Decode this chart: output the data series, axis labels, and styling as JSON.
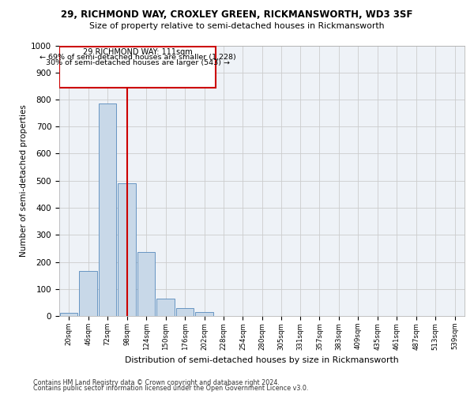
{
  "title1": "29, RICHMOND WAY, CROXLEY GREEN, RICKMANSWORTH, WD3 3SF",
  "title2": "Size of property relative to semi-detached houses in Rickmansworth",
  "xlabel": "Distribution of semi-detached houses by size in Rickmansworth",
  "ylabel": "Number of semi-detached properties",
  "bin_labels": [
    "20sqm",
    "46sqm",
    "72sqm",
    "98sqm",
    "124sqm",
    "150sqm",
    "176sqm",
    "202sqm",
    "228sqm",
    "254sqm",
    "280sqm",
    "305sqm",
    "331sqm",
    "357sqm",
    "383sqm",
    "409sqm",
    "435sqm",
    "461sqm",
    "487sqm",
    "513sqm",
    "539sqm"
  ],
  "bin_edges": [
    20,
    46,
    72,
    98,
    124,
    150,
    176,
    202,
    228,
    254,
    280,
    305,
    331,
    357,
    383,
    409,
    435,
    461,
    487,
    513,
    539
  ],
  "bar_heights": [
    12,
    165,
    785,
    490,
    237,
    65,
    30,
    15,
    0,
    0,
    0,
    0,
    0,
    0,
    0,
    0,
    0,
    0,
    0,
    0
  ],
  "bar_color": "#c8d8e8",
  "bar_edge_color": "#5588bb",
  "property_size": 111,
  "annotation_text1": "29 RICHMOND WAY: 111sqm",
  "annotation_text2": "← 69% of semi-detached houses are smaller (1,228)",
  "annotation_text3": "30% of semi-detached houses are larger (543) →",
  "red_line_color": "#cc0000",
  "annotation_box_edge": "#cc0000",
  "ylim": [
    0,
    1000
  ],
  "yticks": [
    0,
    100,
    200,
    300,
    400,
    500,
    600,
    700,
    800,
    900,
    1000
  ],
  "grid_color": "#cccccc",
  "bg_color": "#eef2f7",
  "footer1": "Contains HM Land Registry data © Crown copyright and database right 2024.",
  "footer2": "Contains public sector information licensed under the Open Government Licence v3.0."
}
